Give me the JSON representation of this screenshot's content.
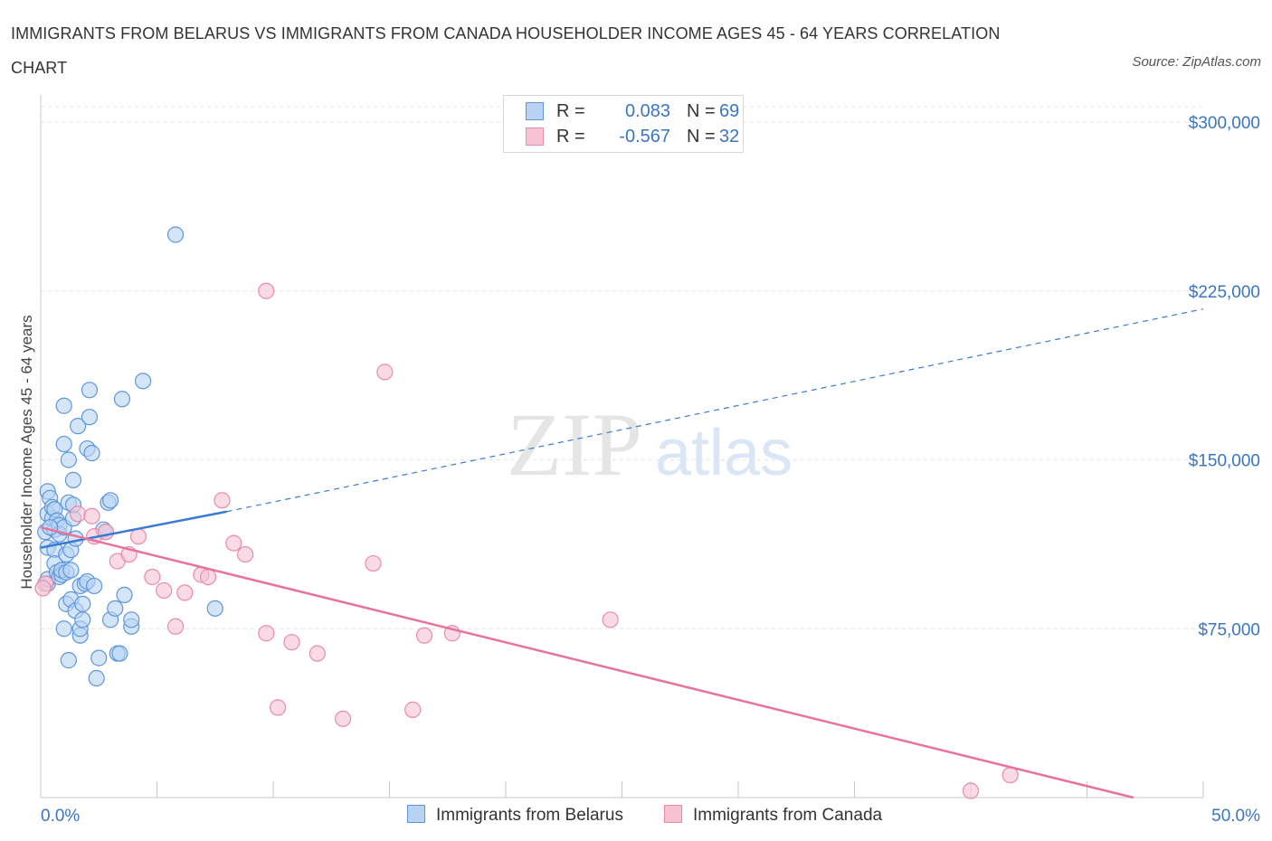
{
  "title": "IMMIGRANTS FROM BELARUS VS IMMIGRANTS FROM CANADA HOUSEHOLDER INCOME AGES 45 - 64 YEARS CORRELATION CHART",
  "source": "Source: ZipAtlas.com",
  "watermark": {
    "zip": "ZIP",
    "atlas": "atlas"
  },
  "colors": {
    "blue_fill": "#b8d3f4",
    "blue_stroke": "#5e96de",
    "blue_line": "#3a7bd5",
    "pink_fill": "#f7c3d3",
    "pink_stroke": "#e98aa9",
    "pink_line": "#e8729a",
    "axis_label": "#3a75c4",
    "grid": "#e3e3e3"
  },
  "legend": {
    "rows": [
      {
        "r_label": "R =",
        "r_value": "0.083",
        "n_label": "N =",
        "n_value": "69",
        "series": "blue"
      },
      {
        "r_label": "R =",
        "r_value": "-0.567",
        "n_label": "N =",
        "n_value": "32",
        "series": "pink"
      }
    ]
  },
  "bottom_legend": [
    "Immigrants from Belarus",
    "Immigrants from Canada"
  ],
  "chart_data": {
    "type": "scatter",
    "title": "IMMIGRANTS FROM BELARUS VS IMMIGRANTS FROM CANADA HOUSEHOLDER INCOME AGES 45 - 64 YEARS CORRELATION CHART",
    "xlabel": "",
    "ylabel": "Householder Income Ages 45 - 64 years",
    "xlim": [
      0,
      50
    ],
    "ylim": [
      0,
      300000
    ],
    "x_tick_labels": [
      "0.0%",
      "50.0%"
    ],
    "y_ticks": [
      75000,
      150000,
      225000,
      300000
    ],
    "y_tick_labels": [
      "$75,000",
      "$150,000",
      "$225,000",
      "$300,000"
    ],
    "grid": true,
    "series": [
      {
        "name": "Immigrants from Belarus",
        "color": "blue",
        "trend": {
          "x": [
            0,
            8
          ],
          "y": [
            111000,
            127000
          ],
          "extended_to": [
            50,
            217000
          ]
        },
        "points": [
          [
            0.2,
            118000
          ],
          [
            0.3,
            95000
          ],
          [
            0.3,
            111000
          ],
          [
            0.3,
            126000
          ],
          [
            0.3,
            136000
          ],
          [
            0.3,
            97000
          ],
          [
            0.4,
            133000
          ],
          [
            0.5,
            124000
          ],
          [
            0.5,
            129000
          ],
          [
            0.6,
            128000
          ],
          [
            0.6,
            119000
          ],
          [
            0.6,
            110000
          ],
          [
            0.6,
            104000
          ],
          [
            0.7,
            100000
          ],
          [
            0.7,
            123000
          ],
          [
            0.8,
            98000
          ],
          [
            0.8,
            121000
          ],
          [
            0.8,
            117000
          ],
          [
            0.9,
            99000
          ],
          [
            0.9,
            101000
          ],
          [
            1.0,
            157000
          ],
          [
            1.0,
            120000
          ],
          [
            1.0,
            75000
          ],
          [
            1.0,
            174000
          ],
          [
            1.1,
            108000
          ],
          [
            1.1,
            100000
          ],
          [
            1.1,
            86000
          ],
          [
            1.2,
            150000
          ],
          [
            1.2,
            131000
          ],
          [
            1.2,
            61000
          ],
          [
            1.3,
            88000
          ],
          [
            1.3,
            110000
          ],
          [
            1.3,
            101000
          ],
          [
            1.4,
            124000
          ],
          [
            1.4,
            130000
          ],
          [
            1.4,
            141000
          ],
          [
            1.5,
            83000
          ],
          [
            1.5,
            115000
          ],
          [
            1.6,
            165000
          ],
          [
            1.7,
            94000
          ],
          [
            1.7,
            72000
          ],
          [
            1.7,
            75000
          ],
          [
            1.8,
            79000
          ],
          [
            1.8,
            86000
          ],
          [
            1.9,
            95000
          ],
          [
            2.0,
            155000
          ],
          [
            2.0,
            96000
          ],
          [
            2.1,
            181000
          ],
          [
            2.1,
            169000
          ],
          [
            2.2,
            153000
          ],
          [
            2.3,
            94000
          ],
          [
            2.4,
            53000
          ],
          [
            2.5,
            62000
          ],
          [
            2.7,
            119000
          ],
          [
            2.8,
            118000
          ],
          [
            2.9,
            131000
          ],
          [
            3.0,
            79000
          ],
          [
            3.0,
            132000
          ],
          [
            3.2,
            84000
          ],
          [
            3.3,
            64000
          ],
          [
            3.4,
            64000
          ],
          [
            3.5,
            177000
          ],
          [
            3.6,
            90000
          ],
          [
            3.9,
            76000
          ],
          [
            3.9,
            79000
          ],
          [
            4.4,
            185000
          ],
          [
            5.8,
            250000
          ],
          [
            7.5,
            84000
          ],
          [
            0.4,
            120000
          ]
        ]
      },
      {
        "name": "Immigrants from Canada",
        "color": "pink",
        "trend": {
          "x": [
            0,
            47
          ],
          "y": [
            120000,
            0
          ]
        },
        "points": [
          [
            0.2,
            95000
          ],
          [
            1.6,
            126000
          ],
          [
            2.2,
            125000
          ],
          [
            2.3,
            116000
          ],
          [
            2.8,
            118000
          ],
          [
            3.3,
            105000
          ],
          [
            3.8,
            108000
          ],
          [
            4.2,
            116000
          ],
          [
            4.8,
            98000
          ],
          [
            5.3,
            92000
          ],
          [
            5.8,
            76000
          ],
          [
            6.2,
            91000
          ],
          [
            6.9,
            99000
          ],
          [
            7.2,
            98000
          ],
          [
            7.8,
            132000
          ],
          [
            8.3,
            113000
          ],
          [
            8.8,
            108000
          ],
          [
            9.7,
            73000
          ],
          [
            9.7,
            225000
          ],
          [
            10.2,
            40000
          ],
          [
            10.8,
            69000
          ],
          [
            11.9,
            64000
          ],
          [
            13.0,
            35000
          ],
          [
            14.3,
            104000
          ],
          [
            14.8,
            189000
          ],
          [
            16.0,
            39000
          ],
          [
            16.5,
            72000
          ],
          [
            17.7,
            73000
          ],
          [
            24.5,
            79000
          ],
          [
            40.0,
            3000
          ],
          [
            41.7,
            10000
          ],
          [
            0.1,
            93000
          ]
        ]
      }
    ]
  }
}
